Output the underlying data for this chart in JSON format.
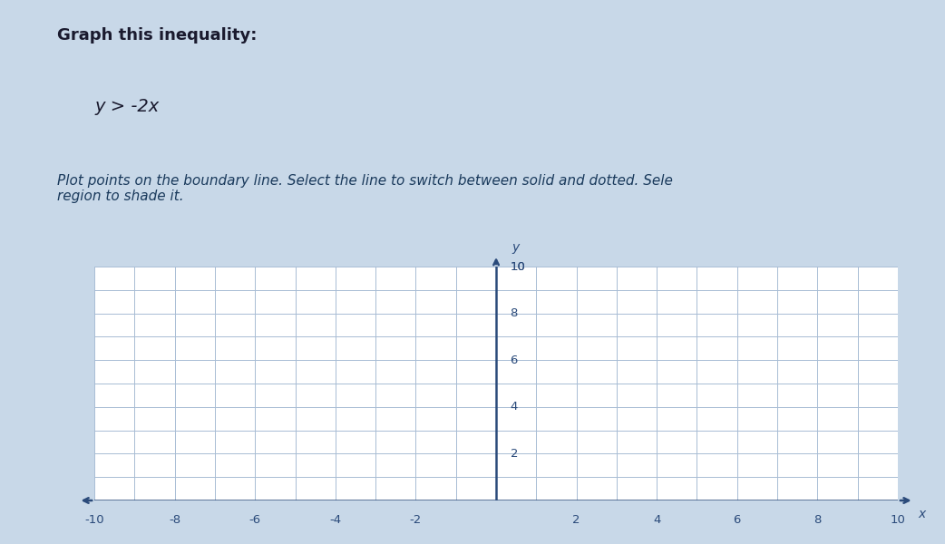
{
  "title_line1": "Graph this inequality:",
  "title_line2": "y > -2x",
  "instruction": "Plot points on the boundary line. Select the line to switch between solid and dotted. Sele\nregion to shade it.",
  "x_min": -10,
  "x_max": 10,
  "y_min": 0,
  "y_max": 10,
  "x_ticks": [
    -10,
    -8,
    -6,
    -4,
    -2,
    2,
    4,
    6,
    8,
    10
  ],
  "y_ticks_positive": [
    2,
    4,
    6,
    8,
    10
  ],
  "grid_color": "#a8bcd4",
  "axis_color": "#2a4a7a",
  "background_color_grid": "#ffffff",
  "text_color_title": "#1a1a2e",
  "text_color_instruction": "#1a3a5c",
  "tick_label_color": "#2a4a7a",
  "fig_background": "#c8d8e8",
  "page_background": "#dce8f2"
}
